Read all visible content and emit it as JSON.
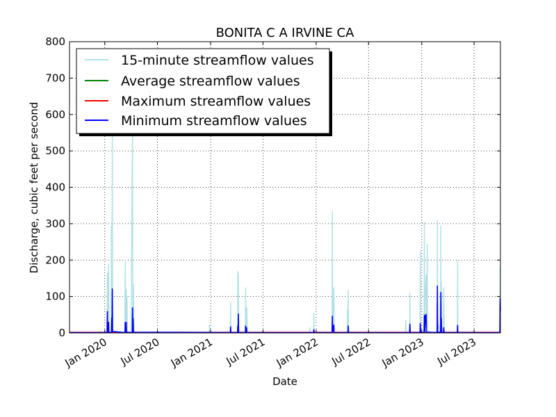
{
  "chart_data": {
    "type": "line",
    "title": "BONITA C A IRVINE CA",
    "xlabel": "Date",
    "ylabel": "Discharge, cubic feet per second",
    "xlim": [
      "2019-09-01",
      "2023-09-30"
    ],
    "ylim": [
      0,
      800
    ],
    "yticks": [
      0,
      100,
      200,
      300,
      400,
      500,
      600,
      700,
      800
    ],
    "xticks": [
      {
        "date": "2020-01-01",
        "label": "Jan 2020"
      },
      {
        "date": "2020-07-01",
        "label": "Jul 2020"
      },
      {
        "date": "2021-01-01",
        "label": "Jan 2021"
      },
      {
        "date": "2021-07-01",
        "label": "Jul 2021"
      },
      {
        "date": "2022-01-01",
        "label": "Jan 2022"
      },
      {
        "date": "2022-07-01",
        "label": "Jul 2022"
      },
      {
        "date": "2023-01-01",
        "label": "Jan 2023"
      },
      {
        "date": "2023-07-01",
        "label": "Jul 2023"
      }
    ],
    "grid": true,
    "legend_position": "top-left",
    "series": [
      {
        "name": "15-minute streamflow values",
        "color": "#b0e0e6",
        "points": [
          [
            "2019-09-01",
            1
          ],
          [
            "2019-12-10",
            1
          ],
          [
            "2019-12-15",
            4
          ],
          [
            "2019-12-17",
            1
          ],
          [
            "2020-01-09",
            1
          ],
          [
            "2020-01-10",
            165
          ],
          [
            "2020-01-11",
            5
          ],
          [
            "2020-01-14",
            190
          ],
          [
            "2020-01-16",
            3
          ],
          [
            "2020-01-23",
            1
          ],
          [
            "2020-01-24",
            295
          ],
          [
            "2020-01-25",
            5
          ],
          [
            "2020-01-27",
            560
          ],
          [
            "2020-01-28",
            8
          ],
          [
            "2020-01-29",
            2
          ],
          [
            "2020-02-15",
            1
          ],
          [
            "2020-03-10",
            1
          ],
          [
            "2020-03-12",
            200
          ],
          [
            "2020-03-13",
            6
          ],
          [
            "2020-03-15",
            120
          ],
          [
            "2020-03-17",
            4
          ],
          [
            "2020-03-18",
            100
          ],
          [
            "2020-03-19",
            3
          ],
          [
            "2020-04-01",
            1
          ],
          [
            "2020-04-06",
            580
          ],
          [
            "2020-04-07",
            8
          ],
          [
            "2020-04-09",
            135
          ],
          [
            "2020-04-11",
            3
          ],
          [
            "2020-04-14",
            1
          ],
          [
            "2020-12-27",
            1
          ],
          [
            "2020-12-28",
            22
          ],
          [
            "2020-12-29",
            1
          ],
          [
            "2021-03-10",
            1
          ],
          [
            "2021-03-11",
            85
          ],
          [
            "2021-03-12",
            2
          ],
          [
            "2021-04-04",
            1
          ],
          [
            "2021-04-05",
            170
          ],
          [
            "2021-04-06",
            5
          ],
          [
            "2021-04-07",
            165
          ],
          [
            "2021-04-08",
            3
          ],
          [
            "2021-05-01",
            1
          ],
          [
            "2021-05-02",
            125
          ],
          [
            "2021-05-03",
            4
          ],
          [
            "2021-05-06",
            70
          ],
          [
            "2021-05-08",
            1
          ],
          [
            "2021-12-09",
            1
          ],
          [
            "2021-12-10",
            15
          ],
          [
            "2021-12-11",
            1
          ],
          [
            "2021-12-23",
            1
          ],
          [
            "2021-12-24",
            55
          ],
          [
            "2021-12-25",
            1
          ],
          [
            "2022-02-25",
            1
          ],
          [
            "2022-02-26",
            335
          ],
          [
            "2022-02-27",
            8
          ],
          [
            "2022-03-03",
            125
          ],
          [
            "2022-03-05",
            2
          ],
          [
            "2022-03-07",
            1
          ],
          [
            "2022-04-10",
            1
          ],
          [
            "2022-04-18",
            1
          ],
          [
            "2022-04-19",
            65
          ],
          [
            "2022-04-20",
            2
          ],
          [
            "2022-04-22",
            118
          ],
          [
            "2022-04-23",
            2
          ],
          [
            "2022-05-01",
            1
          ],
          [
            "2022-11-01",
            1
          ],
          [
            "2022-11-06",
            1
          ],
          [
            "2022-11-07",
            35
          ],
          [
            "2022-11-08",
            1
          ],
          [
            "2022-11-20",
            1
          ],
          [
            "2022-11-21",
            110
          ],
          [
            "2022-11-22",
            2
          ],
          [
            "2022-12-26",
            1
          ],
          [
            "2022-12-27",
            225
          ],
          [
            "2022-12-28",
            8
          ],
          [
            "2022-12-31",
            1
          ],
          [
            "2023-01-09",
            1
          ],
          [
            "2023-01-10",
            305
          ],
          [
            "2023-01-11",
            10
          ],
          [
            "2023-01-14",
            120
          ],
          [
            "2023-01-16",
            160
          ],
          [
            "2023-01-18",
            5
          ],
          [
            "2023-01-20",
            245
          ],
          [
            "2023-01-21",
            5
          ],
          [
            "2023-02-10",
            1
          ],
          [
            "2023-02-23",
            1
          ],
          [
            "2023-02-24",
            310
          ],
          [
            "2023-02-25",
            10
          ],
          [
            "2023-02-28",
            20
          ],
          [
            "2023-03-07",
            1
          ],
          [
            "2023-03-08",
            295
          ],
          [
            "2023-03-09",
            10
          ],
          [
            "2023-03-10",
            140
          ],
          [
            "2023-03-11",
            5
          ],
          [
            "2023-03-17",
            1
          ],
          [
            "2023-03-18",
            125
          ],
          [
            "2023-03-20",
            2
          ],
          [
            "2023-05-01",
            1
          ],
          [
            "2023-05-04",
            1
          ],
          [
            "2023-05-05",
            200
          ],
          [
            "2023-05-06",
            2
          ],
          [
            "2023-09-20",
            1
          ],
          [
            "2023-09-28",
            1
          ],
          [
            "2023-09-29",
            180
          ]
        ]
      },
      {
        "name": "Average streamflow values",
        "color": "#008000",
        "points": [
          [
            "2019-09-01",
            1
          ],
          [
            "2020-01-26",
            1
          ],
          [
            "2020-01-27",
            5
          ],
          [
            "2020-01-28",
            1
          ],
          [
            "2020-04-05",
            1
          ],
          [
            "2020-04-06",
            5
          ],
          [
            "2020-04-07",
            1
          ],
          [
            "2022-02-25",
            1
          ],
          [
            "2022-02-26",
            4
          ],
          [
            "2022-02-27",
            1
          ],
          [
            "2023-01-09",
            1
          ],
          [
            "2023-01-10",
            5
          ],
          [
            "2023-01-11",
            1
          ],
          [
            "2023-09-30",
            1
          ]
        ]
      },
      {
        "name": "Maximum streamflow values",
        "color": "#ff0000",
        "points": [
          [
            "2019-09-01",
            2
          ],
          [
            "2020-01-26",
            2
          ],
          [
            "2020-01-27",
            4
          ],
          [
            "2020-01-28",
            2
          ],
          [
            "2023-09-30",
            2
          ]
        ]
      },
      {
        "name": "Minimum streamflow values",
        "color": "#0000ff",
        "points": [
          [
            "2019-09-01",
            1
          ],
          [
            "2020-01-09",
            1
          ],
          [
            "2020-01-10",
            60
          ],
          [
            "2020-01-11",
            2
          ],
          [
            "2020-01-14",
            30
          ],
          [
            "2020-01-15",
            2
          ],
          [
            "2020-01-24",
            1
          ],
          [
            "2020-01-25",
            42
          ],
          [
            "2020-01-26",
            3
          ],
          [
            "2020-01-27",
            122
          ],
          [
            "2020-01-28",
            4
          ],
          [
            "2020-03-11",
            1
          ],
          [
            "2020-03-12",
            30
          ],
          [
            "2020-03-13",
            3
          ],
          [
            "2020-03-15",
            30
          ],
          [
            "2020-03-16",
            2
          ],
          [
            "2020-04-05",
            1
          ],
          [
            "2020-04-06",
            70
          ],
          [
            "2020-04-07",
            4
          ],
          [
            "2020-04-08",
            40
          ],
          [
            "2020-04-09",
            2
          ],
          [
            "2021-03-10",
            1
          ],
          [
            "2021-03-11",
            18
          ],
          [
            "2021-03-12",
            1
          ],
          [
            "2021-04-04",
            1
          ],
          [
            "2021-04-05",
            20
          ],
          [
            "2021-04-06",
            2
          ],
          [
            "2021-04-07",
            53
          ],
          [
            "2021-04-08",
            1
          ],
          [
            "2021-05-01",
            1
          ],
          [
            "2021-05-02",
            20
          ],
          [
            "2021-05-03",
            2
          ],
          [
            "2021-05-05",
            15
          ],
          [
            "2021-05-06",
            1
          ],
          [
            "2021-12-23",
            1
          ],
          [
            "2021-12-24",
            10
          ],
          [
            "2021-12-25",
            1
          ],
          [
            "2022-02-25",
            1
          ],
          [
            "2022-02-26",
            47
          ],
          [
            "2022-02-27",
            3
          ],
          [
            "2022-03-01",
            18
          ],
          [
            "2022-03-03",
            20
          ],
          [
            "2022-03-04",
            1
          ],
          [
            "2022-04-21",
            1
          ],
          [
            "2022-04-22",
            20
          ],
          [
            "2022-04-23",
            1
          ],
          [
            "2022-11-20",
            1
          ],
          [
            "2022-11-21",
            25
          ],
          [
            "2022-11-22",
            1
          ],
          [
            "2022-12-26",
            1
          ],
          [
            "2022-12-27",
            27
          ],
          [
            "2022-12-28",
            2
          ],
          [
            "2023-01-09",
            1
          ],
          [
            "2023-01-10",
            50
          ],
          [
            "2023-01-11",
            3
          ],
          [
            "2023-01-14",
            45
          ],
          [
            "2023-01-16",
            52
          ],
          [
            "2023-01-17",
            2
          ],
          [
            "2023-02-23",
            1
          ],
          [
            "2023-02-24",
            130
          ],
          [
            "2023-02-25",
            3
          ],
          [
            "2023-03-07",
            1
          ],
          [
            "2023-03-08",
            112
          ],
          [
            "2023-03-09",
            3
          ],
          [
            "2023-03-10",
            40
          ],
          [
            "2023-03-11",
            1
          ],
          [
            "2023-03-17",
            1
          ],
          [
            "2023-03-18",
            15
          ],
          [
            "2023-03-19",
            1
          ],
          [
            "2023-05-04",
            1
          ],
          [
            "2023-05-05",
            22
          ],
          [
            "2023-05-06",
            1
          ],
          [
            "2023-09-28",
            1
          ],
          [
            "2023-09-29",
            95
          ],
          [
            "2023-09-30",
            60
          ]
        ]
      }
    ]
  }
}
